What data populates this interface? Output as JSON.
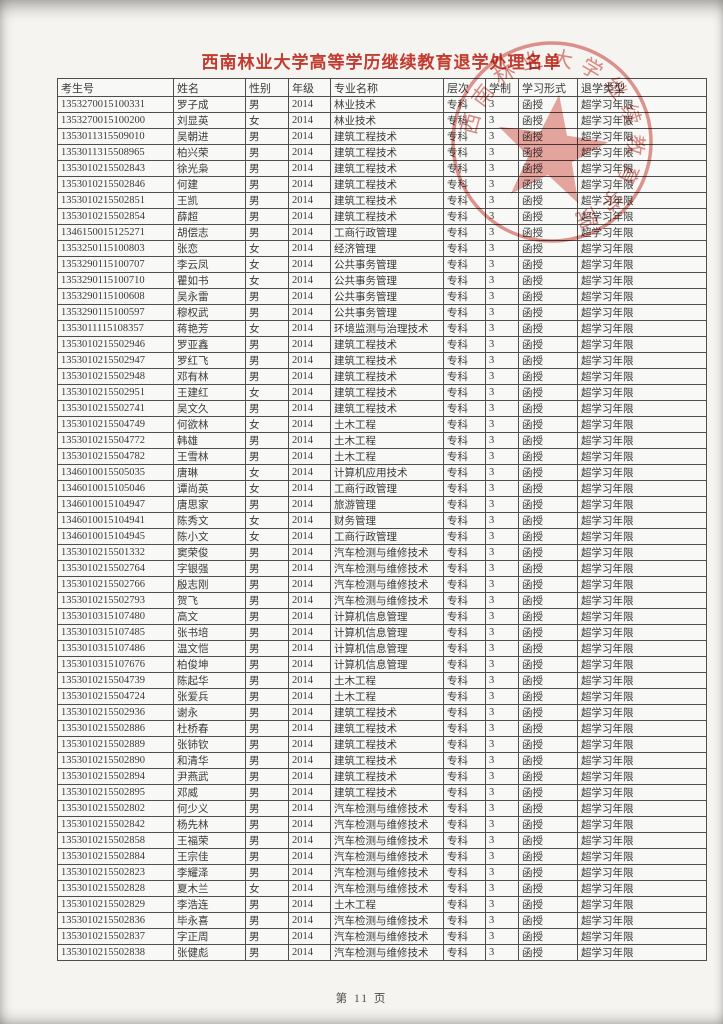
{
  "page": {
    "title": "西南林业大学高等学历继续教育退学处理名单",
    "footer": "第 11 页"
  },
  "stamp": {
    "ring_text": "西南林业大学继续教育学院",
    "color": "#c9372c"
  },
  "table": {
    "columns": [
      "考生号",
      "姓名",
      "性别",
      "年级",
      "专业名称",
      "层次",
      "学制",
      "学习形式",
      "退学类型"
    ],
    "rows": [
      [
        "1353270015100331",
        "罗子成",
        "男",
        "2014",
        "林业技术",
        "专科",
        "3",
        "函授",
        "超学习年限"
      ],
      [
        "1353270015100200",
        "刘显英",
        "女",
        "2014",
        "林业技术",
        "专科",
        "3",
        "函授",
        "超学习年限"
      ],
      [
        "1353011315509010",
        "吴朝进",
        "男",
        "2014",
        "建筑工程技术",
        "专科",
        "3",
        "函授",
        "超学习年限"
      ],
      [
        "1353011315508965",
        "柏兴荣",
        "男",
        "2014",
        "建筑工程技术",
        "专科",
        "3",
        "函授",
        "超学习年限"
      ],
      [
        "1353010215502843",
        "徐光枭",
        "男",
        "2014",
        "建筑工程技术",
        "专科",
        "3",
        "函授",
        "超学习年限"
      ],
      [
        "1353010215502846",
        "何建",
        "男",
        "2014",
        "建筑工程技术",
        "专科",
        "3",
        "函授",
        "超学习年限"
      ],
      [
        "1353010215502851",
        "王凯",
        "男",
        "2014",
        "建筑工程技术",
        "专科",
        "3",
        "函授",
        "超学习年限"
      ],
      [
        "1353010215502854",
        "薛超",
        "男",
        "2014",
        "建筑工程技术",
        "专科",
        "3",
        "函授",
        "超学习年限"
      ],
      [
        "1346150015125271",
        "胡偿志",
        "男",
        "2014",
        "工商行政管理",
        "专科",
        "3",
        "函授",
        "超学习年限"
      ],
      [
        "1353250115100803",
        "张恋",
        "女",
        "2014",
        "经济管理",
        "专科",
        "3",
        "函授",
        "超学习年限"
      ],
      [
        "1353290115100707",
        "李云凤",
        "女",
        "2014",
        "公共事务管理",
        "专科",
        "3",
        "函授",
        "超学习年限"
      ],
      [
        "1353290115100710",
        "瞿如书",
        "女",
        "2014",
        "公共事务管理",
        "专科",
        "3",
        "函授",
        "超学习年限"
      ],
      [
        "1353290115100608",
        "吴永雷",
        "男",
        "2014",
        "公共事务管理",
        "专科",
        "3",
        "函授",
        "超学习年限"
      ],
      [
        "1353290115100597",
        "穆权武",
        "男",
        "2014",
        "公共事务管理",
        "专科",
        "3",
        "函授",
        "超学习年限"
      ],
      [
        "1353011115108357",
        "蒋艳芳",
        "女",
        "2014",
        "环境监测与治理技术",
        "专科",
        "3",
        "函授",
        "超学习年限"
      ],
      [
        "1353010215502946",
        "罗亚鑫",
        "男",
        "2014",
        "建筑工程技术",
        "专科",
        "3",
        "函授",
        "超学习年限"
      ],
      [
        "1353010215502947",
        "罗红飞",
        "男",
        "2014",
        "建筑工程技术",
        "专科",
        "3",
        "函授",
        "超学习年限"
      ],
      [
        "1353010215502948",
        "邓有林",
        "男",
        "2014",
        "建筑工程技术",
        "专科",
        "3",
        "函授",
        "超学习年限"
      ],
      [
        "1353010215502951",
        "王建红",
        "女",
        "2014",
        "建筑工程技术",
        "专科",
        "3",
        "函授",
        "超学习年限"
      ],
      [
        "1353010215502741",
        "吴文久",
        "男",
        "2014",
        "建筑工程技术",
        "专科",
        "3",
        "函授",
        "超学习年限"
      ],
      [
        "1353010215504749",
        "何欲林",
        "女",
        "2014",
        "土木工程",
        "专科",
        "3",
        "函授",
        "超学习年限"
      ],
      [
        "1353010215504772",
        "韩雄",
        "男",
        "2014",
        "土木工程",
        "专科",
        "3",
        "函授",
        "超学习年限"
      ],
      [
        "1353010215504782",
        "王雪林",
        "男",
        "2014",
        "土木工程",
        "专科",
        "3",
        "函授",
        "超学习年限"
      ],
      [
        "1346010015505035",
        "唐琳",
        "女",
        "2014",
        "计算机应用技术",
        "专科",
        "3",
        "函授",
        "超学习年限"
      ],
      [
        "1346010015105046",
        "谭尚英",
        "女",
        "2014",
        "工商行政管理",
        "专科",
        "3",
        "函授",
        "超学习年限"
      ],
      [
        "1346010015104947",
        "唐思家",
        "男",
        "2014",
        "旅游管理",
        "专科",
        "3",
        "函授",
        "超学习年限"
      ],
      [
        "1346010015104941",
        "陈秀文",
        "女",
        "2014",
        "财务管理",
        "专科",
        "3",
        "函授",
        "超学习年限"
      ],
      [
        "1346010015104945",
        "陈小文",
        "女",
        "2014",
        "工商行政管理",
        "专科",
        "3",
        "函授",
        "超学习年限"
      ],
      [
        "1353010215501332",
        "窦荣俊",
        "男",
        "2014",
        "汽车检测与维修技术",
        "专科",
        "3",
        "函授",
        "超学习年限"
      ],
      [
        "1353010215502764",
        "字银强",
        "男",
        "2014",
        "汽车检测与维修技术",
        "专科",
        "3",
        "函授",
        "超学习年限"
      ],
      [
        "1353010215502766",
        "殷志刚",
        "男",
        "2014",
        "汽车检测与维修技术",
        "专科",
        "3",
        "函授",
        "超学习年限"
      ],
      [
        "1353010215502793",
        "贺飞",
        "男",
        "2014",
        "汽车检测与维修技术",
        "专科",
        "3",
        "函授",
        "超学习年限"
      ],
      [
        "1353010315107480",
        "高文",
        "男",
        "2014",
        "计算机信息管理",
        "专科",
        "3",
        "函授",
        "超学习年限"
      ],
      [
        "1353010315107485",
        "张书培",
        "男",
        "2014",
        "计算机信息管理",
        "专科",
        "3",
        "函授",
        "超学习年限"
      ],
      [
        "1353010315107486",
        "温文恺",
        "男",
        "2014",
        "计算机信息管理",
        "专科",
        "3",
        "函授",
        "超学习年限"
      ],
      [
        "1353010315107676",
        "柏俊坤",
        "男",
        "2014",
        "计算机信息管理",
        "专科",
        "3",
        "函授",
        "超学习年限"
      ],
      [
        "1353010215504739",
        "陈起华",
        "男",
        "2014",
        "土木工程",
        "专科",
        "3",
        "函授",
        "超学习年限"
      ],
      [
        "1353010215504724",
        "张爱兵",
        "男",
        "2014",
        "土木工程",
        "专科",
        "3",
        "函授",
        "超学习年限"
      ],
      [
        "1353010215502936",
        "谢永",
        "男",
        "2014",
        "建筑工程技术",
        "专科",
        "3",
        "函授",
        "超学习年限"
      ],
      [
        "1353010215502886",
        "杜桥春",
        "男",
        "2014",
        "建筑工程技术",
        "专科",
        "3",
        "函授",
        "超学习年限"
      ],
      [
        "1353010215502889",
        "张铈钦",
        "男",
        "2014",
        "建筑工程技术",
        "专科",
        "3",
        "函授",
        "超学习年限"
      ],
      [
        "1353010215502890",
        "和清华",
        "男",
        "2014",
        "建筑工程技术",
        "专科",
        "3",
        "函授",
        "超学习年限"
      ],
      [
        "1353010215502894",
        "尹燕武",
        "男",
        "2014",
        "建筑工程技术",
        "专科",
        "3",
        "函授",
        "超学习年限"
      ],
      [
        "1353010215502895",
        "邓威",
        "男",
        "2014",
        "建筑工程技术",
        "专科",
        "3",
        "函授",
        "超学习年限"
      ],
      [
        "1353010215502802",
        "何少义",
        "男",
        "2014",
        "汽车检测与维修技术",
        "专科",
        "3",
        "函授",
        "超学习年限"
      ],
      [
        "1353010215502842",
        "杨先林",
        "男",
        "2014",
        "汽车检测与维修技术",
        "专科",
        "3",
        "函授",
        "超学习年限"
      ],
      [
        "1353010215502858",
        "王福荣",
        "男",
        "2014",
        "汽车检测与维修技术",
        "专科",
        "3",
        "函授",
        "超学习年限"
      ],
      [
        "1353010215502884",
        "王宗佳",
        "男",
        "2014",
        "汽车检测与维修技术",
        "专科",
        "3",
        "函授",
        "超学习年限"
      ],
      [
        "1353010215502823",
        "李耀泽",
        "男",
        "2014",
        "汽车检测与维修技术",
        "专科",
        "3",
        "函授",
        "超学习年限"
      ],
      [
        "1353010215502828",
        "夏木兰",
        "女",
        "2014",
        "汽车检测与维修技术",
        "专科",
        "3",
        "函授",
        "超学习年限"
      ],
      [
        "1353010215502829",
        "李浩连",
        "男",
        "2014",
        "土木工程",
        "专科",
        "3",
        "函授",
        "超学习年限"
      ],
      [
        "1353010215502836",
        "毕永喜",
        "男",
        "2014",
        "汽车检测与维修技术",
        "专科",
        "3",
        "函授",
        "超学习年限"
      ],
      [
        "1353010215502837",
        "字正周",
        "男",
        "2014",
        "汽车检测与维修技术",
        "专科",
        "3",
        "函授",
        "超学习年限"
      ],
      [
        "1353010215502838",
        "张健彪",
        "男",
        "2014",
        "汽车检测与维修技术",
        "专科",
        "3",
        "函授",
        "超学习年限"
      ]
    ]
  }
}
